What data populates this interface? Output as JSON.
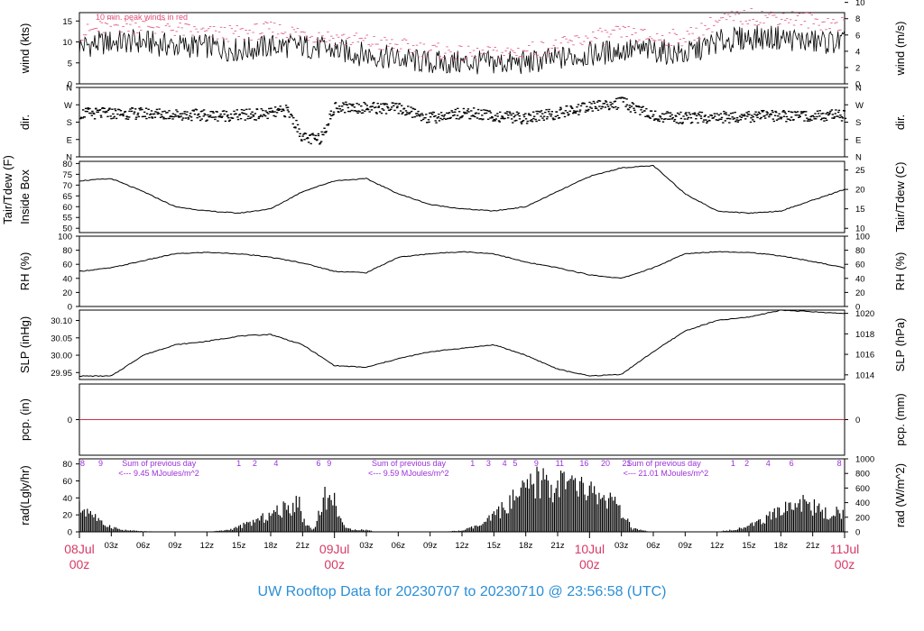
{
  "footer": "UW Rooftop Data for 20230707  to  20230710 @ 23:56:58  (UTC)",
  "colors": {
    "line": "#000000",
    "peak": "#e0507a",
    "pcp": "#cc3344",
    "annot": "#9b30d9",
    "day_label": "#d63a66",
    "footer": "#2b8fd6"
  },
  "chart_data": [
    {
      "id": "wind",
      "type": "line",
      "ylabel_left": "wind (kts)",
      "ylabel_right": "wind (m/s)",
      "ylim": [
        0,
        17
      ],
      "yticks_left": [
        "0",
        "5",
        "10",
        "15"
      ],
      "yticks_left_values": [
        0,
        5,
        10,
        15
      ],
      "yticks_right": [
        "0",
        "2",
        "4",
        "6",
        "8",
        "10"
      ],
      "yticks_right_values": [
        0,
        2,
        4,
        6,
        8,
        10
      ],
      "right_scale": 0.5144,
      "annotation": "10 min. peak winds in red",
      "series": [
        {
          "role": "mean",
          "x_hours": [
            0,
            3,
            6,
            9,
            12,
            15,
            18,
            21,
            24,
            27,
            30,
            33,
            36,
            39,
            42,
            45,
            48,
            51,
            54,
            57,
            60,
            63,
            66,
            69,
            72
          ],
          "values": [
            9,
            10,
            10,
            9,
            9,
            8,
            9,
            9,
            8,
            7,
            6,
            5,
            5,
            5,
            5,
            6,
            7,
            8,
            8,
            7,
            10,
            11,
            11,
            10,
            10
          ]
        },
        {
          "role": "peak",
          "x_hours": [
            0,
            3,
            6,
            9,
            12,
            15,
            18,
            21,
            24,
            27,
            30,
            33,
            36,
            39,
            42,
            45,
            48,
            51,
            54,
            57,
            60,
            63,
            66,
            69,
            72
          ],
          "values": [
            12,
            14,
            14,
            13,
            12,
            12,
            13,
            12,
            11,
            10,
            9,
            8,
            7,
            7,
            8,
            9,
            11,
            12,
            11,
            11,
            15,
            16,
            16,
            15,
            14
          ]
        }
      ]
    },
    {
      "id": "dir",
      "type": "scatter",
      "ylabel_left": "dir.",
      "ylabel_right": "dir.",
      "ylim": [
        0,
        360
      ],
      "yticks_left": [
        "N",
        "E",
        "S",
        "W",
        "N"
      ],
      "yticks_left_values": [
        0,
        90,
        180,
        270,
        360
      ],
      "yticks_right": [
        "N",
        "E",
        "S",
        "W",
        "N"
      ],
      "yticks_right_values": [
        0,
        90,
        180,
        270,
        360
      ],
      "series": [
        {
          "x_hours": [
            0,
            3,
            6,
            9,
            12,
            15,
            18,
            19.5,
            21,
            22.5,
            24,
            27,
            30,
            33,
            36,
            39,
            42,
            45,
            48,
            51,
            54,
            57,
            60,
            63,
            66,
            69,
            72
          ],
          "values": [
            225,
            225,
            225,
            220,
            215,
            215,
            225,
            240,
            95,
            90,
            260,
            255,
            250,
            200,
            230,
            210,
            200,
            225,
            260,
            280,
            210,
            200,
            205,
            210,
            210,
            215,
            215
          ]
        }
      ]
    },
    {
      "id": "temp",
      "type": "line",
      "ylabel_left": "Tair/Tdew (F)",
      "ylabel_left2": "Inside Box",
      "ylabel_right": "Tair/Tdew (C)",
      "ylim": [
        48,
        81
      ],
      "yticks_left": [
        "50",
        "55",
        "60",
        "65",
        "70",
        "75",
        "80"
      ],
      "yticks_left_values": [
        50,
        55,
        60,
        65,
        70,
        75,
        80
      ],
      "yticks_right": [
        "10",
        "15",
        "20",
        "25"
      ],
      "yticks_right_values": [
        10,
        15,
        20,
        25
      ],
      "right_celsius": true,
      "series": [
        {
          "x_hours": [
            0,
            3,
            6,
            9,
            12,
            15,
            18,
            21,
            24,
            27,
            30,
            33,
            36,
            39,
            42,
            45,
            48,
            51,
            54,
            57,
            60,
            63,
            66,
            69,
            72
          ],
          "values": [
            72,
            73,
            67,
            60,
            58,
            57,
            59,
            67,
            72,
            73,
            66,
            61,
            59,
            58,
            60,
            67,
            74,
            78,
            79,
            66,
            58,
            57,
            58,
            63,
            68
          ]
        }
      ]
    },
    {
      "id": "rh",
      "type": "line",
      "ylabel_left": "RH (%)",
      "ylabel_right": "RH (%)",
      "ylim": [
        0,
        100
      ],
      "yticks_left": [
        "0",
        "20",
        "40",
        "60",
        "80",
        "100"
      ],
      "yticks_left_values": [
        0,
        20,
        40,
        60,
        80,
        100
      ],
      "yticks_right": [
        "0",
        "20",
        "40",
        "60",
        "80",
        "100"
      ],
      "yticks_right_values": [
        0,
        20,
        40,
        60,
        80,
        100
      ],
      "series": [
        {
          "x_hours": [
            0,
            3,
            6,
            9,
            12,
            15,
            18,
            21,
            24,
            27,
            30,
            33,
            36,
            39,
            42,
            45,
            48,
            51,
            54,
            57,
            60,
            63,
            66,
            69,
            72
          ],
          "values": [
            50,
            55,
            65,
            75,
            77,
            75,
            70,
            62,
            50,
            48,
            70,
            75,
            78,
            75,
            63,
            55,
            45,
            40,
            55,
            75,
            78,
            77,
            72,
            64,
            55
          ]
        }
      ]
    },
    {
      "id": "slp",
      "type": "line",
      "ylabel_left": "SLP (inHg)",
      "ylabel_right": "SLP (hPa)",
      "ylim": [
        29.93,
        30.13
      ],
      "yticks_left": [
        "29.95",
        "30.00",
        "30.05",
        "30.10"
      ],
      "yticks_left_values": [
        29.95,
        30.0,
        30.05,
        30.1
      ],
      "yticks_right": [
        "1014",
        "1016",
        "1018",
        "1020"
      ],
      "yticks_right_values": [
        1014,
        1016,
        1018,
        1020
      ],
      "right_hpa": true,
      "series": [
        {
          "x_hours": [
            0,
            3,
            6,
            9,
            12,
            15,
            18,
            21,
            24,
            27,
            30,
            33,
            36,
            39,
            42,
            45,
            48,
            51,
            54,
            57,
            60,
            63,
            66,
            69,
            72
          ],
          "values": [
            29.94,
            29.94,
            30.0,
            30.03,
            30.04,
            30.055,
            30.06,
            30.03,
            29.97,
            29.965,
            29.99,
            30.01,
            30.02,
            30.03,
            30.0,
            29.96,
            29.94,
            29.945,
            30.01,
            30.07,
            30.1,
            30.11,
            30.13,
            30.125,
            30.12
          ]
        }
      ]
    },
    {
      "id": "pcp",
      "type": "line",
      "ylabel_left": "pcp. (in)",
      "ylabel_right": "pcp. (mm)",
      "ylim": [
        -1,
        1
      ],
      "yticks_left": [
        "0"
      ],
      "yticks_left_values": [
        0
      ],
      "yticks_right": [
        "0"
      ],
      "yticks_right_values": [
        0
      ],
      "series": [
        {
          "x_hours": [
            0,
            72
          ],
          "values": [
            0,
            0
          ]
        }
      ]
    },
    {
      "id": "rad",
      "type": "area",
      "ylabel_left": "rad(Lgly/hr)",
      "ylabel_right": "rad (W/m^2)",
      "ylim": [
        0,
        86
      ],
      "yticks_left": [
        "0",
        "20",
        "40",
        "60",
        "80"
      ],
      "yticks_left_values": [
        0,
        20,
        40,
        60,
        80
      ],
      "yticks_right": [
        "0",
        "200",
        "400",
        "600",
        "800",
        "1000"
      ],
      "yticks_right_values": [
        0,
        200,
        400,
        600,
        800,
        1000
      ],
      "right_scale": 11.63,
      "hour_marks": [
        {
          "label": "8",
          "x": 0.3
        },
        {
          "label": "9",
          "x": 2
        },
        {
          "label": "1",
          "x": 15
        },
        {
          "label": "2",
          "x": 16.5
        },
        {
          "label": "4",
          "x": 18.5
        },
        {
          "label": "6",
          "x": 22.5
        },
        {
          "label": "9",
          "x": 23.5
        },
        {
          "label": "1",
          "x": 37
        },
        {
          "label": "3",
          "x": 38.5
        },
        {
          "label": "4",
          "x": 40
        },
        {
          "label": "5",
          "x": 41
        },
        {
          "label": "9",
          "x": 43
        },
        {
          "label": "11",
          "x": 45.2
        },
        {
          "label": "16",
          "x": 47.5
        },
        {
          "label": "20",
          "x": 49.5
        },
        {
          "label": "21",
          "x": 51.5
        },
        {
          "label": "1",
          "x": 61.5
        },
        {
          "label": "2",
          "x": 62.8
        },
        {
          "label": "4",
          "x": 64.8
        },
        {
          "label": "6",
          "x": 67
        },
        {
          "label": "8",
          "x": 71.5
        }
      ],
      "annotations": [
        {
          "line1": "Sum of previous day",
          "line2": "<--- 9.45 MJoules/m^2",
          "x": 3.5
        },
        {
          "line1": "Sum of previous day",
          "line2": "<--- 9.59 MJoules/m^2",
          "x": 27
        },
        {
          "line1": "Sum of previous day",
          "line2": "<--- 21.01 MJoules/m^2",
          "x": 51
        }
      ],
      "series": [
        {
          "x_hours": [
            0,
            1,
            2,
            4,
            6,
            8,
            10,
            12,
            14,
            15,
            16,
            17,
            18,
            19,
            20,
            20.5,
            21,
            22,
            23,
            24,
            25,
            27,
            28,
            30,
            32,
            34,
            36,
            38,
            40,
            42,
            43,
            44,
            44.5,
            45,
            46,
            48,
            50,
            51,
            52,
            53,
            54,
            56,
            58,
            60,
            62,
            64,
            66,
            68,
            70,
            72
          ],
          "values": [
            38,
            34,
            14,
            3,
            1,
            0,
            0,
            0,
            3,
            8,
            14,
            20,
            28,
            35,
            40,
            60,
            20,
            2,
            55,
            50,
            5,
            3,
            0,
            0,
            0,
            0,
            2,
            12,
            40,
            65,
            80,
            80,
            70,
            80,
            75,
            65,
            50,
            30,
            6,
            2,
            0,
            0,
            0,
            0,
            5,
            15,
            35,
            50,
            30,
            30
          ]
        }
      ]
    }
  ],
  "x_axis": {
    "hour_labels": [
      "03z",
      "06z",
      "09z",
      "12z",
      "15z",
      "18z",
      "21z",
      "03z",
      "06z",
      "09z",
      "12z",
      "15z",
      "18z",
      "21z",
      "03z",
      "06z",
      "09z",
      "12z",
      "15z",
      "18z",
      "21z"
    ],
    "hour_values": [
      3,
      6,
      9,
      12,
      15,
      18,
      21,
      27,
      30,
      33,
      36,
      39,
      42,
      45,
      51,
      54,
      57,
      60,
      63,
      66,
      69
    ],
    "day_labels": [
      {
        "date": "08Jul",
        "time": "00z",
        "x": 0
      },
      {
        "date": "09Jul",
        "time": "00z",
        "x": 24
      },
      {
        "date": "10Jul",
        "time": "00z",
        "x": 48
      },
      {
        "date": "11Jul",
        "time": "00z",
        "x": 72
      }
    ]
  }
}
